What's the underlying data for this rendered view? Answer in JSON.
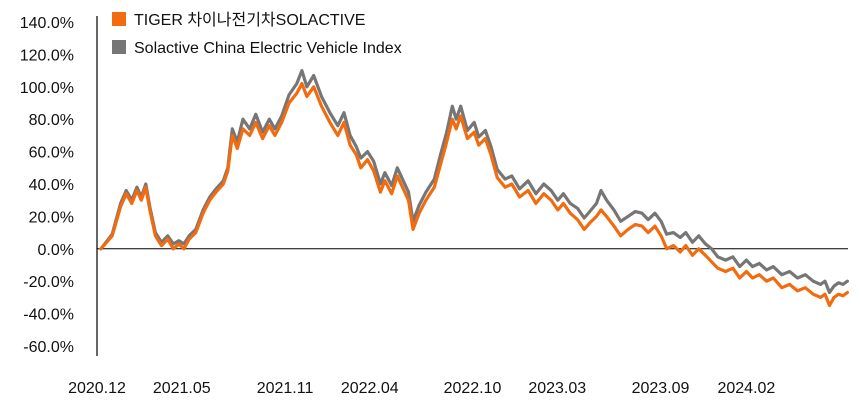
{
  "chart_data": {
    "type": "line",
    "title": "",
    "xlabel": "",
    "ylabel": "",
    "ylim": [
      -60,
      140
    ],
    "y_ticks": [
      -60,
      -40,
      -20,
      0,
      20,
      40,
      60,
      80,
      100,
      120,
      140
    ],
    "y_tick_labels": [
      "-60.0%",
      "-40.0%",
      "-20.0%",
      "0.0%",
      "20.0%",
      "40.0%",
      "60.0%",
      "80.0%",
      "100.0%",
      "120.0%",
      "140.0%"
    ],
    "x_range": [
      "2020-12-01",
      "2024-07-31"
    ],
    "x_ticks": [
      {
        "date": "2020-12-01",
        "label": "2020.12"
      },
      {
        "date": "2021-05-01",
        "label": "2021.05"
      },
      {
        "date": "2021-11-01",
        "label": "2021.11"
      },
      {
        "date": "2022-04-01",
        "label": "2022.04"
      },
      {
        "date": "2022-10-01",
        "label": "2022.10"
      },
      {
        "date": "2023-03-01",
        "label": "2023.03"
      },
      {
        "date": "2023-09-01",
        "label": "2023.09"
      },
      {
        "date": "2024-02-01",
        "label": "2024.02"
      }
    ],
    "grid": false,
    "legend_position": "top-left",
    "series": [
      {
        "name": "TIGER 차이나전기차SOLACTIVE",
        "color": "#F26B0F",
        "points": [
          [
            "2020-12-08",
            0
          ],
          [
            "2020-12-28",
            8
          ],
          [
            "2021-01-12",
            26
          ],
          [
            "2021-01-22",
            34
          ],
          [
            "2021-02-01",
            28
          ],
          [
            "2021-02-10",
            36
          ],
          [
            "2021-02-18",
            30
          ],
          [
            "2021-02-26",
            38
          ],
          [
            "2021-03-05",
            24
          ],
          [
            "2021-03-15",
            8
          ],
          [
            "2021-03-26",
            2
          ],
          [
            "2021-04-06",
            6
          ],
          [
            "2021-04-16",
            0
          ],
          [
            "2021-04-26",
            3
          ],
          [
            "2021-05-05",
            0
          ],
          [
            "2021-05-14",
            6
          ],
          [
            "2021-05-26",
            10
          ],
          [
            "2021-06-08",
            22
          ],
          [
            "2021-06-20",
            30
          ],
          [
            "2021-07-01",
            35
          ],
          [
            "2021-07-14",
            40
          ],
          [
            "2021-07-22",
            48
          ],
          [
            "2021-07-30",
            70
          ],
          [
            "2021-08-08",
            62
          ],
          [
            "2021-08-18",
            74
          ],
          [
            "2021-08-30",
            70
          ],
          [
            "2021-09-10",
            78
          ],
          [
            "2021-09-22",
            68
          ],
          [
            "2021-10-04",
            76
          ],
          [
            "2021-10-14",
            70
          ],
          [
            "2021-10-26",
            78
          ],
          [
            "2021-11-08",
            90
          ],
          [
            "2021-11-22",
            96
          ],
          [
            "2021-12-01",
            102
          ],
          [
            "2021-12-10",
            94
          ],
          [
            "2021-12-22",
            100
          ],
          [
            "2022-01-05",
            88
          ],
          [
            "2022-01-20",
            78
          ],
          [
            "2022-02-03",
            70
          ],
          [
            "2022-02-14",
            78
          ],
          [
            "2022-02-25",
            64
          ],
          [
            "2022-03-08",
            58
          ],
          [
            "2022-03-16",
            50
          ],
          [
            "2022-03-28",
            55
          ],
          [
            "2022-04-08",
            48
          ],
          [
            "2022-04-20",
            35
          ],
          [
            "2022-04-28",
            42
          ],
          [
            "2022-05-10",
            34
          ],
          [
            "2022-05-20",
            45
          ],
          [
            "2022-06-01",
            36
          ],
          [
            "2022-06-09",
            30
          ],
          [
            "2022-06-17",
            12
          ],
          [
            "2022-06-28",
            22
          ],
          [
            "2022-07-10",
            30
          ],
          [
            "2022-07-25",
            38
          ],
          [
            "2022-08-05",
            52
          ],
          [
            "2022-08-16",
            66
          ],
          [
            "2022-08-26",
            80
          ],
          [
            "2022-09-02",
            74
          ],
          [
            "2022-09-10",
            82
          ],
          [
            "2022-09-22",
            68
          ],
          [
            "2022-10-04",
            72
          ],
          [
            "2022-10-12",
            64
          ],
          [
            "2022-10-24",
            68
          ],
          [
            "2022-11-03",
            58
          ],
          [
            "2022-11-14",
            44
          ],
          [
            "2022-11-28",
            38
          ],
          [
            "2022-12-10",
            40
          ],
          [
            "2022-12-24",
            32
          ],
          [
            "2023-01-08",
            36
          ],
          [
            "2023-01-22",
            28
          ],
          [
            "2023-02-05",
            34
          ],
          [
            "2023-02-18",
            30
          ],
          [
            "2023-03-02",
            24
          ],
          [
            "2023-03-12",
            28
          ],
          [
            "2023-03-24",
            22
          ],
          [
            "2023-04-06",
            18
          ],
          [
            "2023-04-18",
            12
          ],
          [
            "2023-04-28",
            16
          ],
          [
            "2023-05-10",
            20
          ],
          [
            "2023-05-18",
            24
          ],
          [
            "2023-05-28",
            20
          ],
          [
            "2023-06-10",
            14
          ],
          [
            "2023-06-22",
            8
          ],
          [
            "2023-07-05",
            12
          ],
          [
            "2023-07-18",
            15
          ],
          [
            "2023-07-30",
            14
          ],
          [
            "2023-08-10",
            10
          ],
          [
            "2023-08-22",
            14
          ],
          [
            "2023-09-02",
            8
          ],
          [
            "2023-09-12",
            0
          ],
          [
            "2023-09-24",
            2
          ],
          [
            "2023-10-06",
            -2
          ],
          [
            "2023-10-16",
            2
          ],
          [
            "2023-10-28",
            -4
          ],
          [
            "2023-11-08",
            0
          ],
          [
            "2023-11-20",
            -4
          ],
          [
            "2023-12-01",
            -8
          ],
          [
            "2023-12-12",
            -12
          ],
          [
            "2023-12-26",
            -14
          ],
          [
            "2024-01-08",
            -12
          ],
          [
            "2024-01-20",
            -18
          ],
          [
            "2024-02-01",
            -14
          ],
          [
            "2024-02-12",
            -18
          ],
          [
            "2024-02-24",
            -16
          ],
          [
            "2024-03-08",
            -20
          ],
          [
            "2024-03-20",
            -18
          ],
          [
            "2024-04-04",
            -24
          ],
          [
            "2024-04-18",
            -22
          ],
          [
            "2024-05-02",
            -26
          ],
          [
            "2024-05-16",
            -24
          ],
          [
            "2024-05-30",
            -28
          ],
          [
            "2024-06-12",
            -30
          ],
          [
            "2024-06-20",
            -28
          ],
          [
            "2024-06-28",
            -35
          ],
          [
            "2024-07-06",
            -30
          ],
          [
            "2024-07-14",
            -28
          ],
          [
            "2024-07-22",
            -29
          ],
          [
            "2024-07-30",
            -27
          ]
        ]
      },
      {
        "name": "Solactive China Electric Vehicle Index",
        "color": "#767676",
        "points": [
          [
            "2020-12-08",
            0
          ],
          [
            "2020-12-28",
            9
          ],
          [
            "2021-01-12",
            28
          ],
          [
            "2021-01-22",
            36
          ],
          [
            "2021-02-01",
            30
          ],
          [
            "2021-02-10",
            38
          ],
          [
            "2021-02-18",
            32
          ],
          [
            "2021-02-26",
            40
          ],
          [
            "2021-03-05",
            26
          ],
          [
            "2021-03-15",
            10
          ],
          [
            "2021-03-26",
            4
          ],
          [
            "2021-04-06",
            8
          ],
          [
            "2021-04-16",
            3
          ],
          [
            "2021-04-26",
            5
          ],
          [
            "2021-05-05",
            3
          ],
          [
            "2021-05-14",
            8
          ],
          [
            "2021-05-26",
            12
          ],
          [
            "2021-06-08",
            24
          ],
          [
            "2021-06-20",
            32
          ],
          [
            "2021-07-01",
            37
          ],
          [
            "2021-07-14",
            42
          ],
          [
            "2021-07-22",
            50
          ],
          [
            "2021-07-30",
            74
          ],
          [
            "2021-08-08",
            66
          ],
          [
            "2021-08-18",
            80
          ],
          [
            "2021-08-30",
            74
          ],
          [
            "2021-09-10",
            83
          ],
          [
            "2021-09-22",
            72
          ],
          [
            "2021-10-04",
            80
          ],
          [
            "2021-10-14",
            74
          ],
          [
            "2021-10-26",
            82
          ],
          [
            "2021-11-08",
            95
          ],
          [
            "2021-11-22",
            102
          ],
          [
            "2021-12-01",
            110
          ],
          [
            "2021-12-10",
            100
          ],
          [
            "2021-12-22",
            107
          ],
          [
            "2022-01-05",
            94
          ],
          [
            "2022-01-20",
            84
          ],
          [
            "2022-02-03",
            76
          ],
          [
            "2022-02-14",
            84
          ],
          [
            "2022-02-25",
            70
          ],
          [
            "2022-03-08",
            63
          ],
          [
            "2022-03-16",
            56
          ],
          [
            "2022-03-28",
            60
          ],
          [
            "2022-04-08",
            54
          ],
          [
            "2022-04-20",
            40
          ],
          [
            "2022-04-28",
            47
          ],
          [
            "2022-05-10",
            39
          ],
          [
            "2022-05-20",
            50
          ],
          [
            "2022-06-01",
            41
          ],
          [
            "2022-06-09",
            35
          ],
          [
            "2022-06-17",
            17
          ],
          [
            "2022-06-28",
            27
          ],
          [
            "2022-07-10",
            35
          ],
          [
            "2022-07-25",
            43
          ],
          [
            "2022-08-05",
            58
          ],
          [
            "2022-08-16",
            72
          ],
          [
            "2022-08-26",
            88
          ],
          [
            "2022-09-02",
            80
          ],
          [
            "2022-09-10",
            88
          ],
          [
            "2022-09-22",
            73
          ],
          [
            "2022-10-04",
            78
          ],
          [
            "2022-10-12",
            69
          ],
          [
            "2022-10-24",
            73
          ],
          [
            "2022-11-03",
            63
          ],
          [
            "2022-11-14",
            49
          ],
          [
            "2022-11-28",
            43
          ],
          [
            "2022-12-10",
            45
          ],
          [
            "2022-12-24",
            37
          ],
          [
            "2023-01-08",
            42
          ],
          [
            "2023-01-22",
            34
          ],
          [
            "2023-02-05",
            40
          ],
          [
            "2023-02-18",
            36
          ],
          [
            "2023-03-02",
            30
          ],
          [
            "2023-03-12",
            34
          ],
          [
            "2023-03-24",
            28
          ],
          [
            "2023-04-06",
            25
          ],
          [
            "2023-04-18",
            19
          ],
          [
            "2023-04-28",
            23
          ],
          [
            "2023-05-10",
            28
          ],
          [
            "2023-05-18",
            36
          ],
          [
            "2023-05-28",
            30
          ],
          [
            "2023-06-10",
            24
          ],
          [
            "2023-06-22",
            17
          ],
          [
            "2023-07-05",
            20
          ],
          [
            "2023-07-18",
            23
          ],
          [
            "2023-07-30",
            22
          ],
          [
            "2023-08-10",
            18
          ],
          [
            "2023-08-22",
            22
          ],
          [
            "2023-09-02",
            17
          ],
          [
            "2023-09-12",
            9
          ],
          [
            "2023-09-24",
            10
          ],
          [
            "2023-10-06",
            7
          ],
          [
            "2023-10-16",
            10
          ],
          [
            "2023-10-28",
            4
          ],
          [
            "2023-11-08",
            8
          ],
          [
            "2023-11-20",
            3
          ],
          [
            "2023-12-01",
            0
          ],
          [
            "2023-12-12",
            -5
          ],
          [
            "2023-12-26",
            -7
          ],
          [
            "2024-01-08",
            -5
          ],
          [
            "2024-01-20",
            -11
          ],
          [
            "2024-02-01",
            -7
          ],
          [
            "2024-02-12",
            -11
          ],
          [
            "2024-02-24",
            -9
          ],
          [
            "2024-03-08",
            -13
          ],
          [
            "2024-03-20",
            -11
          ],
          [
            "2024-04-04",
            -16
          ],
          [
            "2024-04-18",
            -14
          ],
          [
            "2024-05-02",
            -18
          ],
          [
            "2024-05-16",
            -16
          ],
          [
            "2024-05-30",
            -20
          ],
          [
            "2024-06-12",
            -22
          ],
          [
            "2024-06-20",
            -20
          ],
          [
            "2024-06-28",
            -27
          ],
          [
            "2024-07-06",
            -23
          ],
          [
            "2024-07-14",
            -21
          ],
          [
            "2024-07-22",
            -22
          ],
          [
            "2024-07-30",
            -20
          ]
        ]
      }
    ]
  }
}
